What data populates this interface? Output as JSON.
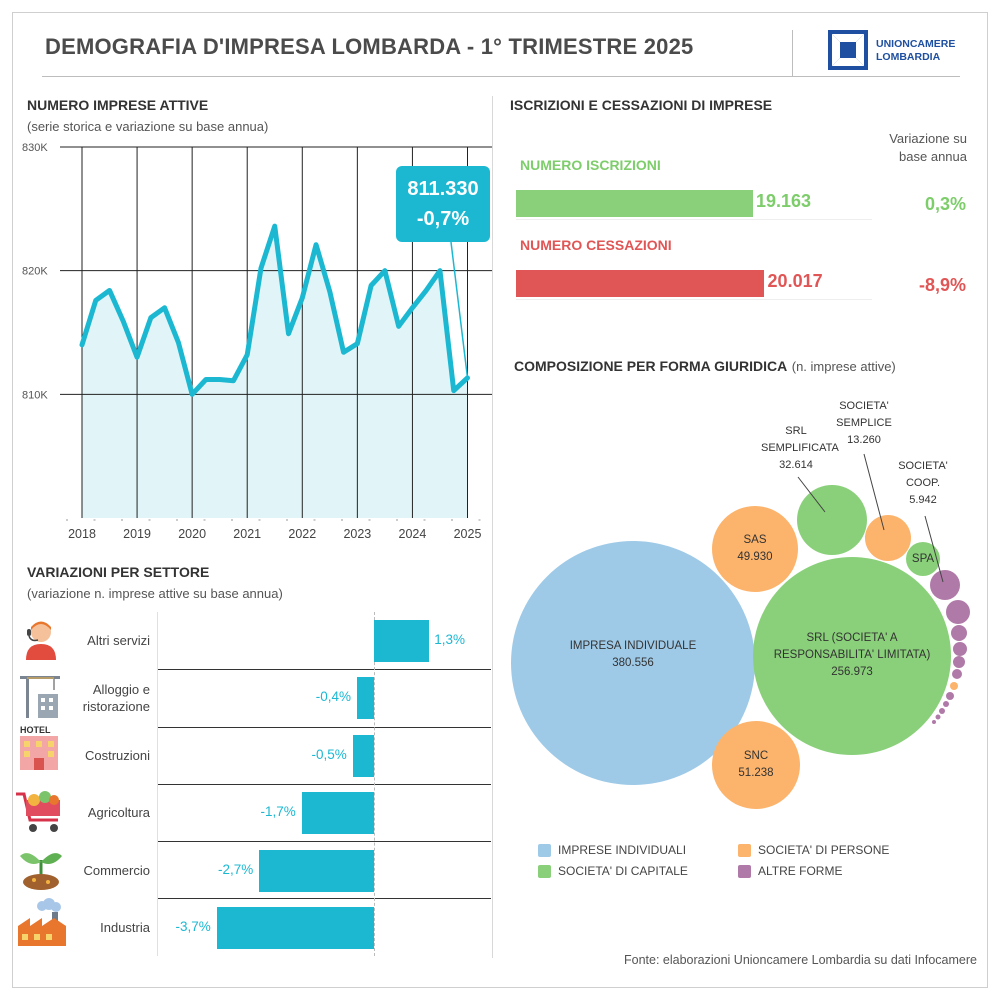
{
  "header": {
    "title": "DEMOGRAFIA D'IMPRESA LOMBARDA - 1° TRIMESTRE 2025",
    "logo_line1": "UNIONCAMERE",
    "logo_line2": "LOMBARDIA",
    "brand_color": "#1f4fa0"
  },
  "colors": {
    "teal": "#1cb8d2",
    "green": "#7dcd6b",
    "red": "#e05555",
    "blue": "#9ecae8",
    "orange": "#fcb36b",
    "purple": "#b07aa8"
  },
  "line_section": {
    "title": "NUMERO IMPRESE ATTIVE",
    "subtitle": "(serie storica e variazione su base annua)",
    "callout_value": "811.330",
    "callout_change": "-0,7%"
  },
  "bars_section": {
    "title": "VARIAZIONI PER SETTORE",
    "subtitle": "(variazione n. imprese attive su base annua)"
  },
  "iscr_section": {
    "title": "ISCRIZIONI E CESSAZIONI DI IMPRESE",
    "var_header_line1": "Variazione su",
    "var_header_line2": "base annua",
    "iscr_label": "NUMERO ISCRIZIONI",
    "iscr_value": "19.163",
    "iscr_change": "0,3%",
    "cess_label": "NUMERO CESSAZIONI",
    "cess_value": "20.017",
    "cess_change": "-8,9%"
  },
  "bubble_section": {
    "title": "COMPOSIZIONE PER FORMA GIURIDICA",
    "subtitle": "(n. imprese attive)"
  },
  "legend": [
    {
      "label": "IMPRESE INDIVIDUALI",
      "color": "#9ecae8"
    },
    {
      "label": "SOCIETA' DI PERSONE",
      "color": "#fcb36b"
    },
    {
      "label": "SOCIETA' DI CAPITALE",
      "color": "#7dcd6b"
    },
    {
      "label": "ALTRE FORME",
      "color": "#b07aa8"
    }
  ],
  "source": "Fonte: elaborazioni Unioncamere Lombardia su dati Infocamere",
  "chart_data": [
    {
      "type": "area",
      "title": "NUMERO IMPRESE ATTIVE",
      "x_ticks": [
        "2018",
        "2019",
        "2020",
        "2021",
        "2022",
        "2023",
        "2024",
        "2025"
      ],
      "y_ticks": [
        "830K",
        "820K",
        "810K"
      ],
      "ylim": [
        800000,
        830000
      ],
      "xlim": [
        2018,
        2025.25
      ],
      "grid": true,
      "series": [
        {
          "x": [
            2018.0,
            2018.25,
            2018.5,
            2018.75,
            2019.0,
            2019.25,
            2019.5,
            2019.75,
            2020.0,
            2020.25,
            2020.5,
            2020.75,
            2021.0,
            2021.25,
            2021.5,
            2021.75,
            2022.0,
            2022.25,
            2022.5,
            2022.75,
            2023.0,
            2023.25,
            2023.5,
            2023.75,
            2024.0,
            2024.25,
            2024.5,
            2024.75,
            2025.0
          ],
          "values": [
            814000,
            817600,
            818400,
            815900,
            813000,
            816200,
            817000,
            814200,
            810000,
            811200,
            811200,
            811100,
            813200,
            820200,
            823600,
            814900,
            817800,
            822100,
            818300,
            813400,
            814100,
            818800,
            820000,
            815500,
            817000,
            818400,
            820000,
            810300,
            811330
          ]
        }
      ]
    },
    {
      "type": "bar",
      "title": "VARIAZIONI PER SETTORE",
      "categories": [
        "Altri servizi",
        "Alloggio e ristorazione",
        "Costruzioni",
        "Agricoltura",
        "Commercio",
        "Industria"
      ],
      "values": [
        1.3,
        -0.4,
        -0.5,
        -1.7,
        -2.7,
        -3.7
      ],
      "value_labels": [
        "1,3%",
        "-0,4%",
        "-0,5%",
        "-1,7%",
        "-2,7%",
        "-3,7%"
      ]
    },
    {
      "type": "bar",
      "title": "ISCRIZIONI E CESSAZIONI DI IMPRESE",
      "categories": [
        "NUMERO ISCRIZIONI",
        "NUMERO CESSAZIONI"
      ],
      "values": [
        19163,
        20017
      ],
      "changes": [
        "0,3%",
        "-8,9%"
      ]
    },
    {
      "type": "bubble",
      "title": "COMPOSIZIONE PER FORMA GIURIDICA",
      "items": [
        {
          "label": "IMPRESA INDIVIDUALE",
          "value": 380556,
          "value_label": "380.556",
          "group": "IMPRESE INDIVIDUALI"
        },
        {
          "label": "SRL (SOCIETA' A RESPONSABILITA' LIMITATA)",
          "value": 256973,
          "value_label": "256.973",
          "group": "SOCIETA' DI CAPITALE"
        },
        {
          "label": "SNC",
          "value": 51238,
          "value_label": "51.238",
          "group": "SOCIETA' DI PERSONE"
        },
        {
          "label": "SAS",
          "value": 49930,
          "value_label": "49.930",
          "group": "SOCIETA' DI PERSONE"
        },
        {
          "label": "SRL SEMPLIFICATA",
          "value": 32614,
          "value_label": "32.614",
          "group": "SOCIETA' DI CAPITALE"
        },
        {
          "label": "SOCIETA' SEMPLICE",
          "value": 13260,
          "value_label": "13.260",
          "group": "SOCIETA' DI PERSONE"
        },
        {
          "label": "SOCIETA' COOP.",
          "value": 5942,
          "value_label": "5.942",
          "group": "ALTRE FORME"
        },
        {
          "label": "SPA",
          "group": "SOCIETA' DI CAPITALE"
        }
      ]
    }
  ]
}
